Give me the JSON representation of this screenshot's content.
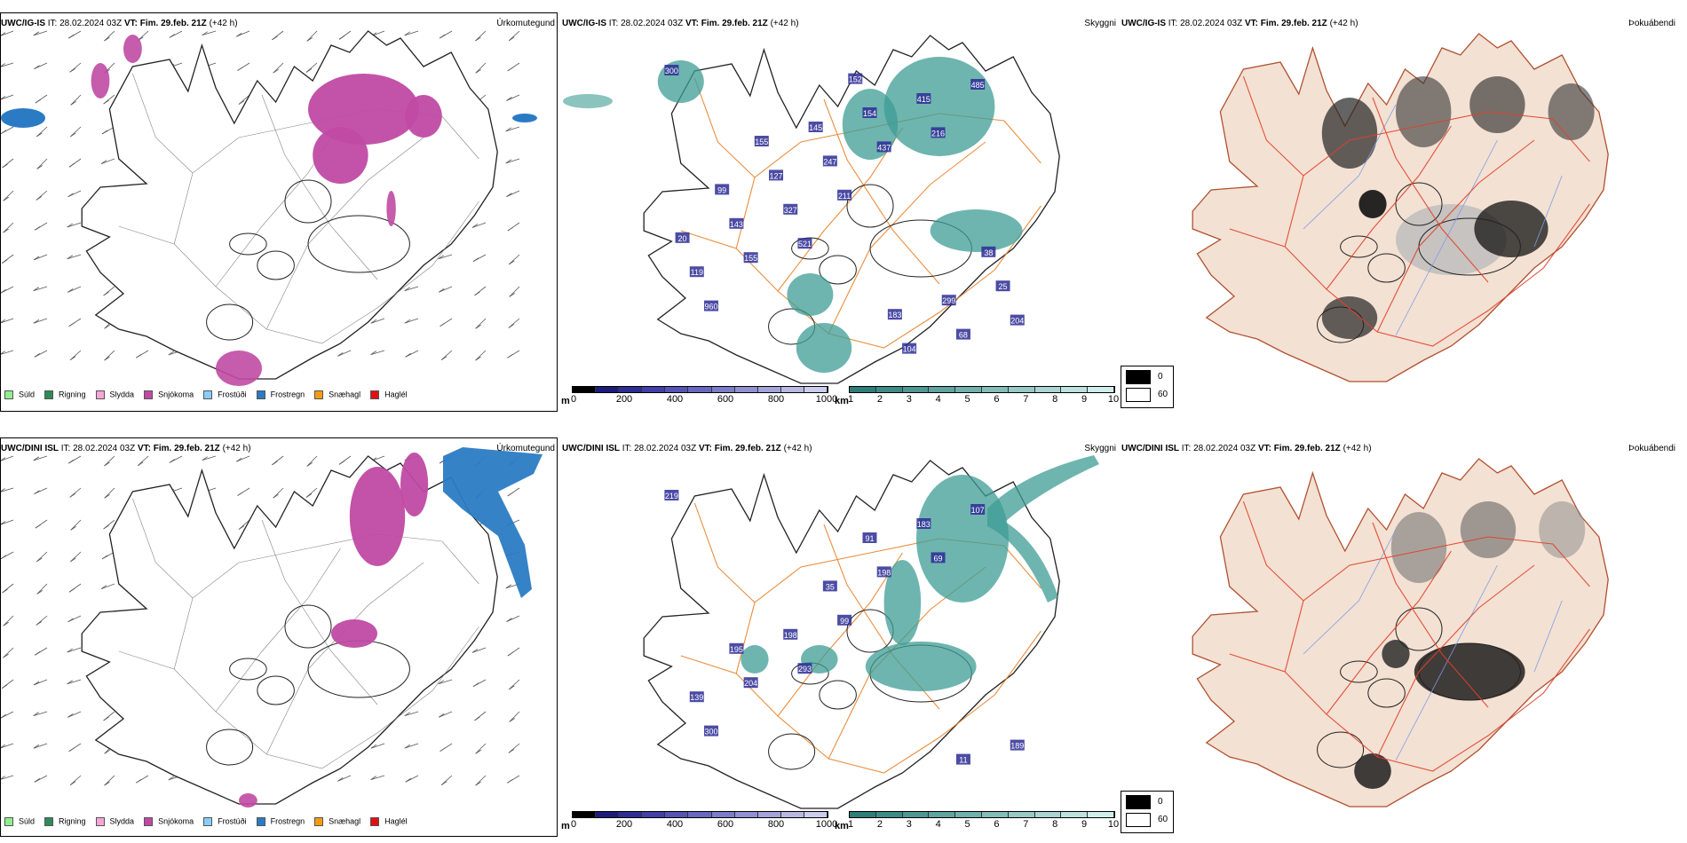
{
  "rows": [
    {
      "model": "UWC/IG-IS",
      "it_label": "IT:",
      "it_value": "28.02.2024 03Z",
      "vt_label": "VT:",
      "vt_value": "Fim. 29.feb. 21Z",
      "lead": "(+42 h)",
      "precip_title": "Úrkomutegund",
      "vis_title": "Skyggni",
      "fog_title": "Þokuábendi",
      "cloud_labels": [
        "300",
        "521",
        "216",
        "960",
        "211",
        "485",
        "155",
        "437",
        "204",
        "327",
        "415",
        "119",
        "247",
        "68",
        "143",
        "154",
        "25",
        "127",
        "104",
        "20",
        "145",
        "299",
        "99",
        "152",
        "38",
        "155",
        "183"
      ]
    },
    {
      "model": "UWC/DINI ISL",
      "it_label": "IT:",
      "it_value": "28.02.2024 03Z",
      "vt_label": "VT:",
      "vt_value": "Fim. 29.feb. 21Z",
      "lead": "(+42 h)",
      "precip_title": "Úrkomutegund",
      "vis_title": "Skyggni",
      "fog_title": "Þokuábendi",
      "cloud_labels": [
        "219",
        "293",
        "69",
        "300",
        "99",
        "107",
        "204",
        "198",
        "189",
        "198",
        "183",
        "139",
        "35",
        "11",
        "195",
        "91"
      ]
    }
  ],
  "precip_legend": [
    {
      "label": "Súld",
      "color": "#90ee90"
    },
    {
      "label": "Rigning",
      "color": "#2e8b57"
    },
    {
      "label": "Slydda",
      "color": "#f4a6d7"
    },
    {
      "label": "Snjókoma",
      "color": "#c04aa3"
    },
    {
      "label": "Frostúði",
      "color": "#87cefa"
    },
    {
      "label": "Frostregn",
      "color": "#2b7bc4"
    },
    {
      "label": "Snæhagl",
      "color": "#f39c12"
    },
    {
      "label": "Haglél",
      "color": "#e01010"
    }
  ],
  "cloudbase_bar": {
    "unit": "m",
    "ticks": [
      "0",
      "200",
      "400",
      "600",
      "800",
      "1000"
    ],
    "colors": [
      "#000000",
      "#1c1c7a",
      "#2d2d95",
      "#4040a8",
      "#5454b4",
      "#6868c0",
      "#7c7cc8",
      "#9090d2",
      "#a4a4da",
      "#b8b8e2",
      "#ccccec"
    ]
  },
  "vis_bar": {
    "unit": "km",
    "ticks": [
      "1",
      "2",
      "3",
      "4",
      "5",
      "6",
      "7",
      "8",
      "9",
      "10"
    ],
    "colors": [
      "#2e7d78",
      "#3e8a85",
      "#4f9792",
      "#60a39f",
      "#72b0ac",
      "#84bcb9",
      "#97c9c6",
      "#aad5d3",
      "#bde1df",
      "#d1edeb"
    ]
  },
  "fog_legend": [
    {
      "value": "0",
      "color": "#000000"
    },
    {
      "value": "60",
      "color": "#ffffff"
    }
  ],
  "colors": {
    "coast": "#222222",
    "roads_orange": "#e8822a",
    "roads_red": "#e0402a",
    "land_fog": "#f3e1d3",
    "rivers": "#7e9ce8",
    "snow": "#c04aa3",
    "frostregn": "#2b7bc4",
    "teal": "#3d9c94"
  }
}
